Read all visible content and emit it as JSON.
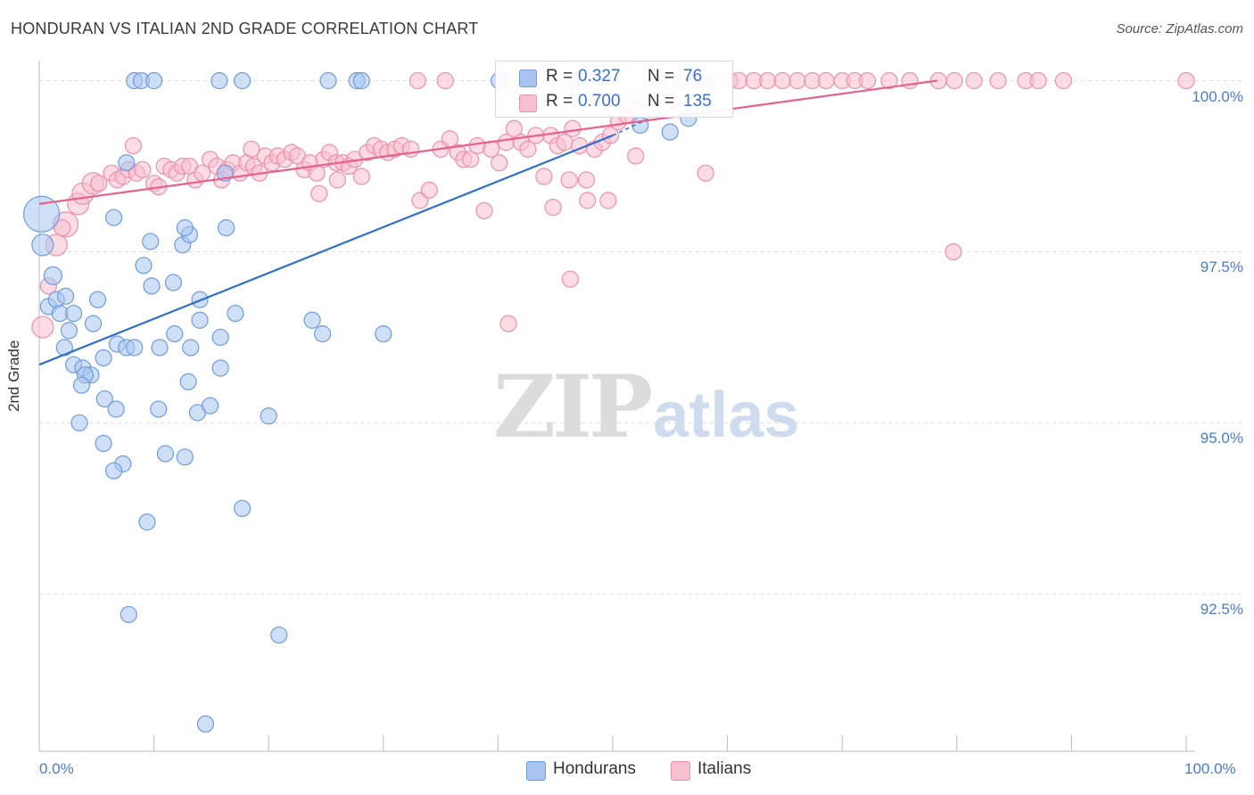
{
  "header": {
    "title": "HONDURAN VS ITALIAN 2ND GRADE CORRELATION CHART",
    "source": "Source: ZipAtlas.com"
  },
  "watermark": {
    "part1": "ZIP",
    "part2": "atlas"
  },
  "legend": {
    "rows": [
      {
        "r_label": "R =",
        "r_value": "0.327",
        "n_label": "N =",
        "n_value": "76",
        "color": "#a8c4ef",
        "border": "#6f9be0"
      },
      {
        "r_label": "R =",
        "r_value": "0.700",
        "n_label": "N =",
        "n_value": "135",
        "color": "#f7bfd0",
        "border": "#ee8fae"
      }
    ]
  },
  "bottom_legend": [
    {
      "label": "Hondurans",
      "color": "#a8c4ef",
      "border": "#6f9be0"
    },
    {
      "label": "Italians",
      "color": "#f7bfd0",
      "border": "#ee8fae"
    }
  ],
  "chart_data": {
    "type": "scatter",
    "title": "HONDURAN VS ITALIAN 2ND GRADE CORRELATION CHART",
    "xlabel": "",
    "ylabel": "2nd Grade",
    "xlim": [
      0,
      100
    ],
    "ylim": [
      90.2,
      100.15
    ],
    "x_tick_labels": [
      "0.0%",
      "100.0%"
    ],
    "y_ticks": [
      92.5,
      95.0,
      97.5,
      100.0
    ],
    "y_tick_labels": [
      "92.5%",
      "95.0%",
      "97.5%",
      "100.0%"
    ],
    "grid": true,
    "legend_position": "top-center",
    "series": [
      {
        "name": "Hondurans",
        "color": "#6f9be0",
        "fill": "#a8c4ef",
        "line": "#2f6fd0",
        "trend": {
          "x": [
            0,
            50
          ],
          "y": [
            95.85,
            99.2
          ]
        },
        "trend_dashed": {
          "x": [
            50,
            57.7
          ],
          "y": [
            99.2,
            99.8
          ]
        },
        "points": [
          [
            0.2,
            98.05,
            20
          ],
          [
            0.3,
            97.6,
            12
          ],
          [
            1.2,
            97.15,
            10
          ],
          [
            0.8,
            96.7,
            9
          ],
          [
            1.5,
            96.8,
            9
          ],
          [
            2.3,
            96.85,
            9
          ],
          [
            1.8,
            96.6,
            9
          ],
          [
            3.0,
            96.6,
            9
          ],
          [
            2.6,
            96.35,
            9
          ],
          [
            4.7,
            96.45,
            9
          ],
          [
            5.1,
            96.8,
            9
          ],
          [
            2.2,
            96.1,
            9
          ],
          [
            3.0,
            95.85,
            9
          ],
          [
            3.8,
            95.8,
            9
          ],
          [
            4.5,
            95.7,
            9
          ],
          [
            4.0,
            95.7,
            9
          ],
          [
            3.7,
            95.55,
            9
          ],
          [
            5.6,
            95.95,
            9
          ],
          [
            6.8,
            96.15,
            9
          ],
          [
            7.6,
            96.1,
            9
          ],
          [
            8.3,
            96.1,
            9
          ],
          [
            5.7,
            95.35,
            9
          ],
          [
            6.7,
            95.2,
            9
          ],
          [
            3.5,
            95.0,
            9
          ],
          [
            5.6,
            94.7,
            9
          ],
          [
            10.5,
            96.1,
            9
          ],
          [
            11.8,
            96.3,
            9
          ],
          [
            13.2,
            96.1,
            9
          ],
          [
            14.0,
            96.5,
            9
          ],
          [
            14.0,
            96.8,
            9
          ],
          [
            11.7,
            97.05,
            9
          ],
          [
            9.8,
            97.0,
            9
          ],
          [
            9.1,
            97.3,
            9
          ],
          [
            9.7,
            97.65,
            9
          ],
          [
            12.5,
            97.6,
            9
          ],
          [
            13.1,
            97.75,
            9
          ],
          [
            12.7,
            97.85,
            9
          ],
          [
            16.3,
            97.85,
            9
          ],
          [
            6.5,
            98.0,
            9
          ],
          [
            7.6,
            98.8,
            9
          ],
          [
            16.2,
            98.65,
            9
          ],
          [
            15.8,
            96.25,
            9
          ],
          [
            17.1,
            96.6,
            9
          ],
          [
            15.8,
            95.8,
            9
          ],
          [
            13.0,
            95.6,
            9
          ],
          [
            10.4,
            95.2,
            9
          ],
          [
            13.8,
            95.15,
            9
          ],
          [
            14.9,
            95.25,
            9
          ],
          [
            20.0,
            95.1,
            9
          ],
          [
            11.0,
            94.55,
            9
          ],
          [
            12.7,
            94.5,
            9
          ],
          [
            7.3,
            94.4,
            9
          ],
          [
            6.5,
            94.3,
            9
          ],
          [
            23.8,
            96.5,
            9
          ],
          [
            24.7,
            96.3,
            9
          ],
          [
            30.0,
            96.3,
            9
          ],
          [
            17.7,
            93.75,
            9
          ],
          [
            9.4,
            93.55,
            9
          ],
          [
            7.8,
            92.2,
            9
          ],
          [
            20.9,
            91.9,
            9
          ],
          [
            14.5,
            90.6,
            9
          ],
          [
            8.3,
            100.0,
            9
          ],
          [
            8.9,
            100.0,
            9
          ],
          [
            10.0,
            100.0,
            9
          ],
          [
            15.7,
            100.0,
            9
          ],
          [
            17.7,
            100.0,
            9
          ],
          [
            25.2,
            100.0,
            9
          ],
          [
            27.7,
            100.0,
            9
          ],
          [
            28.1,
            100.0,
            9
          ],
          [
            40.1,
            100.0,
            9
          ],
          [
            46.7,
            100.0,
            9
          ],
          [
            52.4,
            99.35,
            9
          ],
          [
            55.0,
            99.25,
            9
          ],
          [
            56.6,
            99.45,
            9
          ]
        ]
      },
      {
        "name": "Italians",
        "color": "#ee8fae",
        "fill": "#f7bfd0",
        "line": "#e8608c",
        "trend": {
          "x": [
            0,
            78.3
          ],
          "y": [
            98.2,
            100.0
          ]
        },
        "points": [
          [
            0.3,
            96.4,
            12
          ],
          [
            0.8,
            97.0,
            9
          ],
          [
            1.5,
            97.6,
            12
          ],
          [
            2.3,
            97.9,
            14
          ],
          [
            2.0,
            97.85,
            9
          ],
          [
            3.4,
            98.2,
            12
          ],
          [
            3.8,
            98.35,
            12
          ],
          [
            4.7,
            98.5,
            12
          ],
          [
            5.2,
            98.5,
            9
          ],
          [
            6.3,
            98.65,
            9
          ],
          [
            6.8,
            98.55,
            9
          ],
          [
            7.3,
            98.6,
            9
          ],
          [
            7.8,
            98.7,
            9
          ],
          [
            8.5,
            98.65,
            9
          ],
          [
            9.0,
            98.7,
            9
          ],
          [
            10.0,
            98.5,
            9
          ],
          [
            10.4,
            98.45,
            9
          ],
          [
            10.9,
            98.75,
            9
          ],
          [
            11.5,
            98.7,
            9
          ],
          [
            12.0,
            98.65,
            9
          ],
          [
            12.5,
            98.75,
            9
          ],
          [
            13.1,
            98.75,
            9
          ],
          [
            13.6,
            98.55,
            9
          ],
          [
            14.2,
            98.65,
            9
          ],
          [
            14.9,
            98.85,
            9
          ],
          [
            15.5,
            98.75,
            9
          ],
          [
            15.9,
            98.55,
            9
          ],
          [
            16.4,
            98.7,
            9
          ],
          [
            16.9,
            98.8,
            9
          ],
          [
            17.5,
            98.65,
            9
          ],
          [
            18.1,
            98.8,
            9
          ],
          [
            18.7,
            98.75,
            9
          ],
          [
            19.2,
            98.65,
            9
          ],
          [
            19.7,
            98.9,
            9
          ],
          [
            20.3,
            98.8,
            9
          ],
          [
            20.8,
            98.9,
            9
          ],
          [
            21.4,
            98.85,
            9
          ],
          [
            22.0,
            98.95,
            9
          ],
          [
            22.5,
            98.9,
            9
          ],
          [
            23.1,
            98.7,
            9
          ],
          [
            23.6,
            98.8,
            9
          ],
          [
            24.2,
            98.65,
            9
          ],
          [
            24.8,
            98.85,
            9
          ],
          [
            25.3,
            98.95,
            9
          ],
          [
            25.9,
            98.8,
            9
          ],
          [
            26.5,
            98.8,
            9
          ],
          [
            27.0,
            98.75,
            9
          ],
          [
            27.5,
            98.85,
            9
          ],
          [
            28.1,
            98.6,
            9
          ],
          [
            28.6,
            98.95,
            9
          ],
          [
            29.2,
            99.05,
            9
          ],
          [
            29.8,
            99.0,
            9
          ],
          [
            30.4,
            98.95,
            9
          ],
          [
            31.0,
            99.0,
            9
          ],
          [
            31.6,
            99.05,
            9
          ],
          [
            32.4,
            99.0,
            9
          ],
          [
            33.2,
            98.25,
            9
          ],
          [
            34.0,
            98.4,
            9
          ],
          [
            35.0,
            99.0,
            9
          ],
          [
            35.8,
            99.15,
            9
          ],
          [
            36.5,
            98.95,
            9
          ],
          [
            37.0,
            98.85,
            9
          ],
          [
            37.6,
            98.85,
            9
          ],
          [
            38.2,
            99.05,
            9
          ],
          [
            38.8,
            98.1,
            9
          ],
          [
            39.4,
            99.0,
            9
          ],
          [
            40.1,
            98.8,
            9
          ],
          [
            40.7,
            99.1,
            9
          ],
          [
            41.4,
            99.3,
            9
          ],
          [
            42.0,
            99.1,
            9
          ],
          [
            42.6,
            99.0,
            9
          ],
          [
            43.3,
            99.2,
            9
          ],
          [
            44.0,
            98.6,
            9
          ],
          [
            44.6,
            99.2,
            9
          ],
          [
            45.2,
            99.05,
            9
          ],
          [
            45.8,
            99.1,
            9
          ],
          [
            46.5,
            99.3,
            9
          ],
          [
            47.1,
            99.05,
            9
          ],
          [
            47.7,
            98.55,
            9
          ],
          [
            48.4,
            99.0,
            9
          ],
          [
            49.1,
            99.1,
            9
          ],
          [
            49.8,
            99.2,
            9
          ],
          [
            50.5,
            99.4,
            9
          ],
          [
            51.2,
            99.5,
            9
          ],
          [
            51.8,
            99.6,
            9
          ],
          [
            52.6,
            99.75,
            9
          ],
          [
            53.4,
            99.9,
            9
          ],
          [
            54.0,
            100.0,
            9
          ],
          [
            55.2,
            100.0,
            9
          ],
          [
            56.0,
            100.0,
            9
          ],
          [
            57.0,
            100.0,
            9
          ],
          [
            58.0,
            100.0,
            9
          ],
          [
            59.0,
            100.0,
            9
          ],
          [
            60.2,
            100.0,
            9
          ],
          [
            61.0,
            100.0,
            9
          ],
          [
            62.3,
            100.0,
            9
          ],
          [
            63.5,
            100.0,
            9
          ],
          [
            64.8,
            100.0,
            9
          ],
          [
            66.1,
            100.0,
            9
          ],
          [
            67.4,
            100.0,
            9
          ],
          [
            68.6,
            100.0,
            9
          ],
          [
            70.0,
            100.0,
            9
          ],
          [
            71.1,
            100.0,
            9
          ],
          [
            72.2,
            100.0,
            9
          ],
          [
            74.1,
            100.0,
            9
          ],
          [
            75.9,
            100.0,
            9
          ],
          [
            78.4,
            100.0,
            9
          ],
          [
            79.8,
            100.0,
            9
          ],
          [
            81.5,
            100.0,
            9
          ],
          [
            83.6,
            100.0,
            9
          ],
          [
            86.0,
            100.0,
            9
          ],
          [
            87.1,
            100.0,
            9
          ],
          [
            89.3,
            100.0,
            9
          ],
          [
            100.0,
            100.0,
            9
          ],
          [
            33.0,
            100.0,
            9
          ],
          [
            35.4,
            100.0,
            9
          ],
          [
            41.0,
            100.0,
            9
          ],
          [
            47.6,
            100.0,
            9
          ],
          [
            49.6,
            98.25,
            9
          ],
          [
            44.8,
            98.15,
            9
          ],
          [
            46.2,
            98.55,
            9
          ],
          [
            47.8,
            98.25,
            9
          ],
          [
            52.0,
            98.9,
            9
          ],
          [
            58.1,
            98.65,
            9
          ],
          [
            79.7,
            97.5,
            9
          ],
          [
            46.3,
            97.1,
            9
          ],
          [
            40.9,
            96.45,
            9
          ],
          [
            24.4,
            98.35,
            9
          ],
          [
            26.0,
            98.55,
            9
          ],
          [
            18.5,
            99.0,
            9
          ],
          [
            8.2,
            99.05,
            9
          ]
        ]
      }
    ]
  }
}
